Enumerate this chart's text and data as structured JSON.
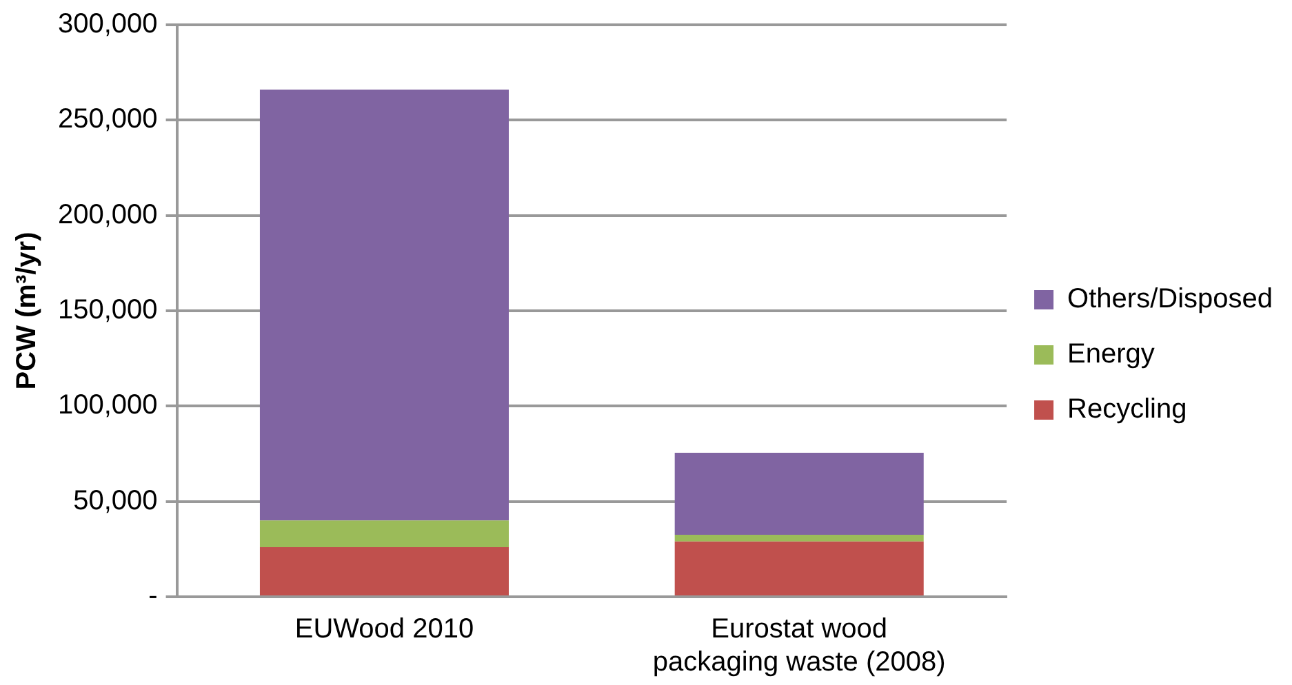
{
  "chart_data": {
    "type": "bar",
    "stacked": true,
    "ylabel": "PCW (m³/yr)",
    "categories": [
      "EUWood 2010",
      "Eurostat wood packaging waste (2008)"
    ],
    "series": [
      {
        "name": "Recycling",
        "color": "#c0504d",
        "values": [
          26000,
          29000
        ]
      },
      {
        "name": "Energy",
        "color": "#9bbb59",
        "values": [
          14000,
          3500
        ]
      },
      {
        "name": "Others/Disposed",
        "color": "#8064a2",
        "values": [
          226000,
          43000
        ]
      }
    ],
    "ylim": [
      0,
      300000
    ],
    "yticks": [
      {
        "value": 0,
        "label": "-"
      },
      {
        "value": 50000,
        "label": "50,000"
      },
      {
        "value": 100000,
        "label": "100,000"
      },
      {
        "value": 150000,
        "label": "150,000"
      },
      {
        "value": 200000,
        "label": "200,000"
      },
      {
        "value": 250000,
        "label": "250,000"
      },
      {
        "value": 300000,
        "label": "300,000"
      }
    ],
    "grid": "y",
    "legend": "right"
  }
}
